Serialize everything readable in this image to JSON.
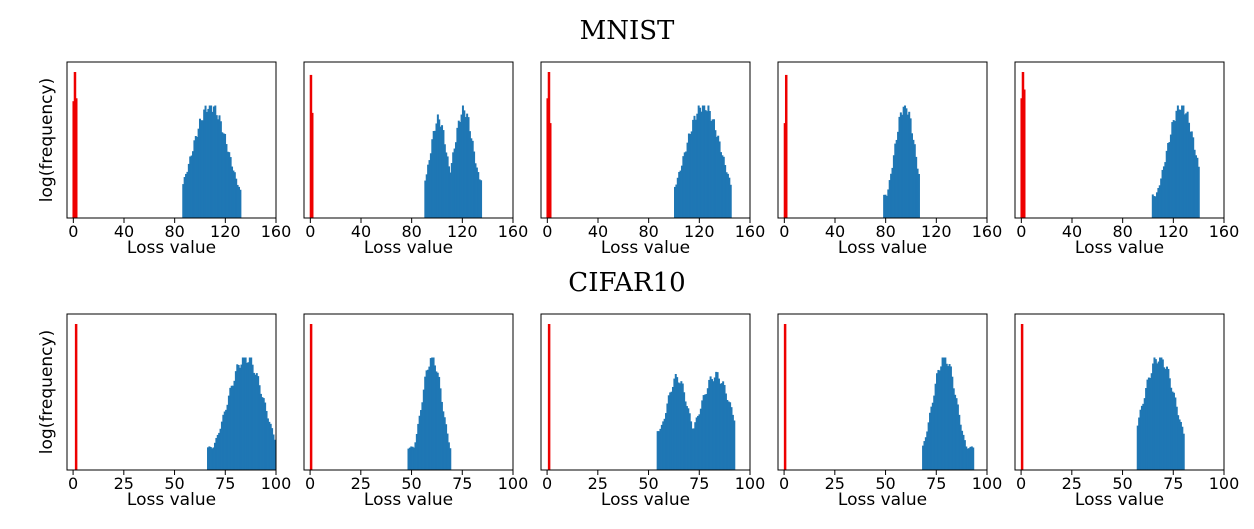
{
  "rows": [
    {
      "title": "MNIST"
    },
    {
      "title": "CIFAR10"
    }
  ],
  "colors": {
    "baseline": "#ee0000",
    "distribution": "#1f77b4"
  },
  "chart_data": [
    {
      "type": "bar",
      "group": "MNIST",
      "xlabel": "Loss value",
      "ylabel": "log(frequency)",
      "xlim": [
        -5,
        160
      ],
      "xticks": [
        0,
        40,
        80,
        120,
        160
      ],
      "yscale": "log",
      "series": [
        {
          "color": "#ee0000",
          "bars": [
            [
              0.3,
              0.8
            ],
            [
              1.3,
              1.0
            ],
            [
              2.3,
              0.82
            ]
          ]
        },
        {
          "color": "#1f77b4",
          "shape": {
            "kind": "single",
            "start": 86,
            "end": 132,
            "peak": 108,
            "spread": 14
          }
        }
      ]
    },
    {
      "type": "bar",
      "group": "MNIST",
      "xlabel": "Loss value",
      "ylabel": "",
      "xlim": [
        -5,
        160
      ],
      "xticks": [
        0,
        40,
        80,
        120,
        160
      ],
      "yscale": "log",
      "series": [
        {
          "color": "#ee0000",
          "bars": [
            [
              0.5,
              0.98
            ],
            [
              1.5,
              0.72
            ]
          ]
        },
        {
          "color": "#1f77b4",
          "shape": {
            "kind": "double",
            "start": 90,
            "end": 135,
            "peaks": [
              [
                101,
                0.7,
                6
              ],
              [
                121,
                0.78,
                7
              ]
            ],
            "base": 0.35
          }
        }
      ]
    },
    {
      "type": "bar",
      "group": "MNIST",
      "xlabel": "Loss value",
      "ylabel": "",
      "xlim": [
        -5,
        160
      ],
      "xticks": [
        0,
        40,
        80,
        120,
        160
      ],
      "yscale": "log",
      "series": [
        {
          "color": "#ee0000",
          "bars": [
            [
              0.3,
              0.82
            ],
            [
              1.3,
              1.0
            ],
            [
              2.3,
              0.65
            ]
          ]
        },
        {
          "color": "#1f77b4",
          "shape": {
            "kind": "single",
            "start": 100,
            "end": 144,
            "peak": 123,
            "spread": 14
          }
        }
      ]
    },
    {
      "type": "bar",
      "group": "MNIST",
      "xlabel": "Loss value",
      "ylabel": "",
      "xlim": [
        -5,
        160
      ],
      "xticks": [
        0,
        40,
        80,
        120,
        160
      ],
      "yscale": "log",
      "series": [
        {
          "color": "#ee0000",
          "bars": [
            [
              0.5,
              0.65
            ],
            [
              1.5,
              0.98
            ]
          ]
        },
        {
          "color": "#1f77b4",
          "shape": {
            "kind": "single",
            "start": 78,
            "end": 106,
            "peak": 95,
            "spread": 8
          }
        }
      ]
    },
    {
      "type": "bar",
      "group": "MNIST",
      "xlabel": "Loss value",
      "ylabel": "",
      "xlim": [
        -5,
        160
      ],
      "xticks": [
        0,
        40,
        80,
        120,
        160
      ],
      "yscale": "log",
      "series": [
        {
          "color": "#ee0000",
          "bars": [
            [
              0.3,
              0.82
            ],
            [
              1.3,
              1.0
            ],
            [
              2.3,
              0.88
            ]
          ]
        },
        {
          "color": "#1f77b4",
          "shape": {
            "kind": "single",
            "start": 103,
            "end": 140,
            "peak": 126,
            "spread": 11
          }
        }
      ]
    },
    {
      "type": "bar",
      "group": "CIFAR10",
      "xlabel": "Loss value",
      "ylabel": "log(frequency)",
      "xlim": [
        -3,
        100
      ],
      "xticks": [
        0,
        25,
        50,
        75,
        100
      ],
      "yscale": "log",
      "series": [
        {
          "color": "#ee0000",
          "bars": [
            [
              1.5,
              1.0
            ]
          ]
        },
        {
          "color": "#1f77b4",
          "shape": {
            "kind": "single",
            "start": 66,
            "end": 99,
            "peak": 85,
            "spread": 9
          }
        }
      ]
    },
    {
      "type": "bar",
      "group": "CIFAR10",
      "xlabel": "Loss value",
      "ylabel": "",
      "xlim": [
        -3,
        100
      ],
      "xticks": [
        0,
        25,
        50,
        75,
        100
      ],
      "yscale": "log",
      "series": [
        {
          "color": "#ee0000",
          "bars": [
            [
              0.5,
              1.0
            ]
          ]
        },
        {
          "color": "#1f77b4",
          "shape": {
            "kind": "single",
            "start": 48,
            "end": 69,
            "peak": 60,
            "spread": 5
          }
        }
      ]
    },
    {
      "type": "bar",
      "group": "CIFAR10",
      "xlabel": "Loss value",
      "ylabel": "",
      "xlim": [
        -3,
        100
      ],
      "xticks": [
        0,
        25,
        50,
        75,
        100
      ],
      "yscale": "log",
      "series": [
        {
          "color": "#ee0000",
          "bars": [
            [
              1.0,
              1.0
            ]
          ]
        },
        {
          "color": "#1f77b4",
          "shape": {
            "kind": "double",
            "start": 54,
            "end": 92,
            "peaks": [
              [
                64,
                0.64,
                5
              ],
              [
                83,
                0.66,
                7
              ]
            ],
            "base": 0.36
          }
        }
      ]
    },
    {
      "type": "bar",
      "group": "CIFAR10",
      "xlabel": "Loss value",
      "ylabel": "",
      "xlim": [
        -3,
        100
      ],
      "xticks": [
        0,
        25,
        50,
        75,
        100
      ],
      "yscale": "log",
      "series": [
        {
          "color": "#ee0000",
          "bars": [
            [
              0.5,
              1.0
            ]
          ]
        },
        {
          "color": "#1f77b4",
          "shape": {
            "kind": "single",
            "start": 68,
            "end": 93,
            "peak": 79,
            "spread": 6
          }
        }
      ]
    },
    {
      "type": "bar",
      "group": "CIFAR10",
      "xlabel": "Loss value",
      "ylabel": "",
      "xlim": [
        -3,
        100
      ],
      "xticks": [
        0,
        25,
        50,
        75,
        100
      ],
      "yscale": "log",
      "series": [
        {
          "color": "#ee0000",
          "bars": [
            [
              0.5,
              1.0
            ]
          ]
        },
        {
          "color": "#1f77b4",
          "shape": {
            "kind": "single",
            "start": 57,
            "end": 80,
            "peak": 68,
            "spread": 8
          }
        }
      ]
    }
  ]
}
